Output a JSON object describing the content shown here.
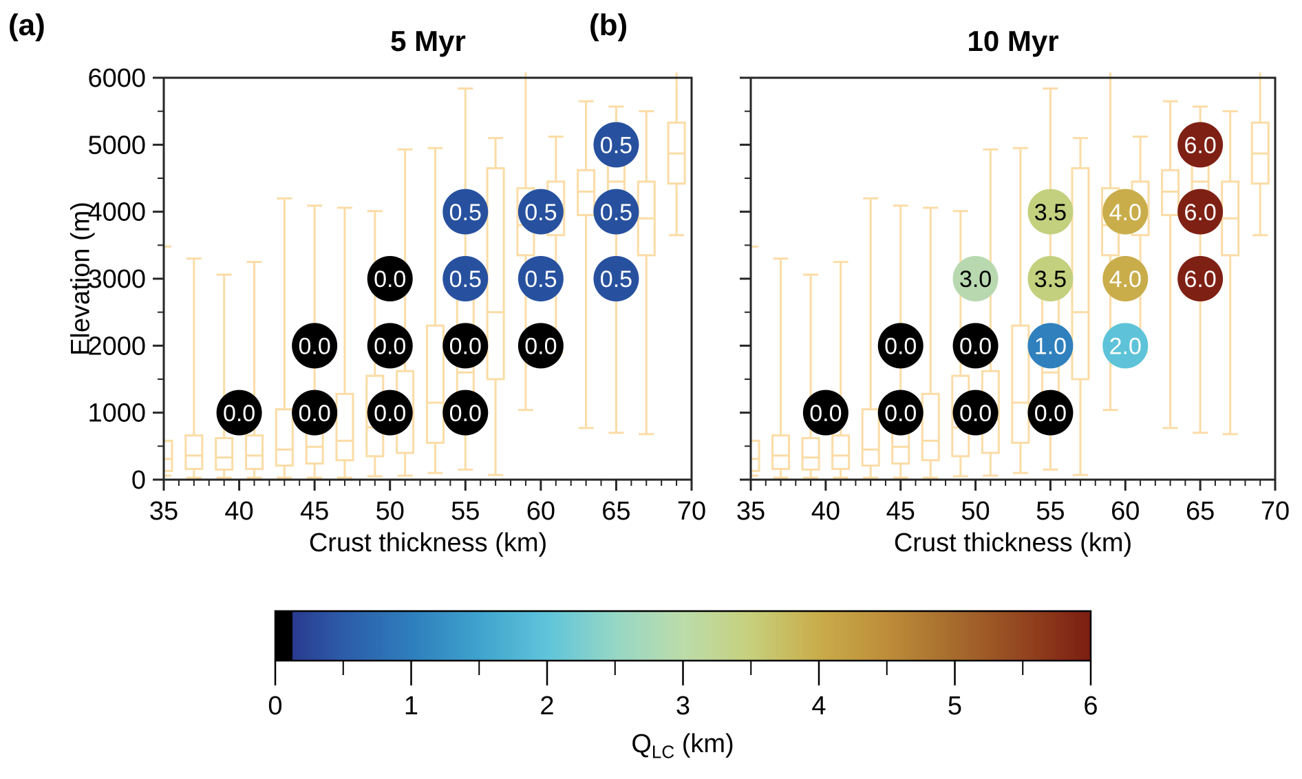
{
  "chart_data": {
    "type": "scatter",
    "description": "Two panels of labeled circular markers over elevation boxplots vs crust thickness, plus shared colorbar",
    "panels": [
      {
        "letter": "(a)",
        "title": "5 Myr",
        "xlabel": "Crust thickness (km)",
        "ylabel": "Elevation (m)",
        "xlim": [
          35,
          70
        ],
        "ylim": [
          0,
          6000
        ],
        "xticks": [
          35,
          40,
          45,
          50,
          55,
          60,
          65,
          70
        ],
        "yticks": [
          0,
          1000,
          2000,
          3000,
          4000,
          5000,
          6000
        ],
        "show_ytick_labels": true,
        "points": [
          {
            "x": 40,
            "y": 1000,
            "value": "0.0"
          },
          {
            "x": 45,
            "y": 1000,
            "value": "0.0"
          },
          {
            "x": 50,
            "y": 1000,
            "value": "0.0"
          },
          {
            "x": 55,
            "y": 1000,
            "value": "0.0"
          },
          {
            "x": 45,
            "y": 2000,
            "value": "0.0"
          },
          {
            "x": 50,
            "y": 2000,
            "value": "0.0"
          },
          {
            "x": 55,
            "y": 2000,
            "value": "0.0"
          },
          {
            "x": 60,
            "y": 2000,
            "value": "0.0"
          },
          {
            "x": 50,
            "y": 3000,
            "value": "0.0"
          },
          {
            "x": 55,
            "y": 3000,
            "value": "0.5"
          },
          {
            "x": 60,
            "y": 3000,
            "value": "0.5"
          },
          {
            "x": 65,
            "y": 3000,
            "value": "0.5"
          },
          {
            "x": 55,
            "y": 4000,
            "value": "0.5"
          },
          {
            "x": 60,
            "y": 4000,
            "value": "0.5"
          },
          {
            "x": 65,
            "y": 4000,
            "value": "0.5"
          },
          {
            "x": 65,
            "y": 5000,
            "value": "0.5"
          }
        ]
      },
      {
        "letter": "(b)",
        "title": "10 Myr",
        "xlabel": "Crust thickness (km)",
        "ylabel": "Elevation (m)",
        "xlim": [
          35,
          70
        ],
        "ylim": [
          0,
          6000
        ],
        "xticks": [
          35,
          40,
          45,
          50,
          55,
          60,
          65,
          70
        ],
        "yticks": [
          0,
          1000,
          2000,
          3000,
          4000,
          5000,
          6000
        ],
        "show_ytick_labels": false,
        "points": [
          {
            "x": 40,
            "y": 1000,
            "value": "0.0"
          },
          {
            "x": 45,
            "y": 1000,
            "value": "0.0"
          },
          {
            "x": 50,
            "y": 1000,
            "value": "0.0"
          },
          {
            "x": 55,
            "y": 1000,
            "value": "0.0"
          },
          {
            "x": 45,
            "y": 2000,
            "value": "0.0"
          },
          {
            "x": 50,
            "y": 2000,
            "value": "0.0"
          },
          {
            "x": 55,
            "y": 2000,
            "value": "1.0"
          },
          {
            "x": 60,
            "y": 2000,
            "value": "2.0"
          },
          {
            "x": 50,
            "y": 3000,
            "value": "3.0"
          },
          {
            "x": 55,
            "y": 3000,
            "value": "3.5"
          },
          {
            "x": 60,
            "y": 3000,
            "value": "4.0"
          },
          {
            "x": 65,
            "y": 3000,
            "value": "6.0"
          },
          {
            "x": 55,
            "y": 4000,
            "value": "3.5"
          },
          {
            "x": 60,
            "y": 4000,
            "value": "4.0"
          },
          {
            "x": 65,
            "y": 4000,
            "value": "6.0"
          },
          {
            "x": 65,
            "y": 5000,
            "value": "6.0"
          }
        ]
      }
    ],
    "value_styles": {
      "0.0": {
        "fill": "#000000",
        "text": "#ffffff"
      },
      "0.5": {
        "fill": "#27519f",
        "text": "#ffffff"
      },
      "1.0": {
        "fill": "#2f80bd",
        "text": "#ffffff"
      },
      "2.0": {
        "fill": "#5ec3d8",
        "text": "#ffffff"
      },
      "3.0": {
        "fill": "#b8d9b0",
        "text": "#000000"
      },
      "3.5": {
        "fill": "#c3d07e",
        "text": "#000000"
      },
      "4.0": {
        "fill": "#c9ad4b",
        "text": "#ffffff"
      },
      "6.0": {
        "fill": "#7f2014",
        "text": "#ffffff"
      }
    },
    "boxplots_shared_by_both_panels": [
      {
        "x": 35,
        "lo": 60,
        "q1": 130,
        "med": 310,
        "q3": 580,
        "hi": 3480
      },
      {
        "x": 37,
        "lo": 30,
        "q1": 160,
        "med": 360,
        "q3": 660,
        "hi": 3300
      },
      {
        "x": 39,
        "lo": 30,
        "q1": 150,
        "med": 330,
        "q3": 620,
        "hi": 3060
      },
      {
        "x": 41,
        "lo": 30,
        "q1": 160,
        "med": 360,
        "q3": 660,
        "hi": 3250
      },
      {
        "x": 43,
        "lo": 30,
        "q1": 210,
        "med": 450,
        "q3": 1050,
        "hi": 4200
      },
      {
        "x": 45,
        "lo": 30,
        "q1": 240,
        "med": 490,
        "q3": 820,
        "hi": 4090
      },
      {
        "x": 47,
        "lo": 30,
        "q1": 290,
        "med": 580,
        "q3": 1280,
        "hi": 4060
      },
      {
        "x": 49,
        "lo": 50,
        "q1": 350,
        "med": 780,
        "q3": 1550,
        "hi": 4010
      },
      {
        "x": 51,
        "lo": 60,
        "q1": 400,
        "med": 900,
        "q3": 1620,
        "hi": 4930
      },
      {
        "x": 53,
        "lo": 100,
        "q1": 550,
        "med": 1150,
        "q3": 2300,
        "hi": 4950
      },
      {
        "x": 55,
        "lo": 150,
        "q1": 850,
        "med": 1600,
        "q3": 3300,
        "hi": 5840
      },
      {
        "x": 57,
        "lo": 70,
        "q1": 1500,
        "med": 2500,
        "q3": 4650,
        "hi": 5100
      },
      {
        "x": 59,
        "lo": 1040,
        "q1": 3350,
        "med": 3800,
        "q3": 4350,
        "hi": 6080
      },
      {
        "x": 61,
        "lo": 1900,
        "q1": 3650,
        "med": 4100,
        "q3": 4450,
        "hi": 5120
      },
      {
        "x": 63,
        "lo": 770,
        "q1": 3950,
        "med": 4300,
        "q3": 4620,
        "hi": 5650
      },
      {
        "x": 65,
        "lo": 700,
        "q1": 3900,
        "med": 4450,
        "q3": 5060,
        "hi": 5570
      },
      {
        "x": 67,
        "lo": 680,
        "q1": 3350,
        "med": 3900,
        "q3": 4450,
        "hi": 5500
      },
      {
        "x": 69,
        "lo": 3650,
        "q1": 4420,
        "med": 4870,
        "q3": 5330,
        "hi": 6080
      }
    ],
    "boxplot_color": "#fbdca6",
    "colorbar": {
      "min": 0,
      "max": 6,
      "major_ticks": [
        0,
        1,
        2,
        3,
        4,
        5,
        6
      ],
      "minor_ticks": [
        0.5,
        1.5,
        2.5,
        3.5,
        4.5,
        5.5
      ],
      "label": {
        "main": "Q",
        "sub": "LC",
        "units": " (km)"
      },
      "gradient_stops": [
        [
          0,
          "#000000"
        ],
        [
          2.1,
          "#000000"
        ],
        [
          2.1,
          "#2a3b8f"
        ],
        [
          8.3,
          "#2c5ca8"
        ],
        [
          16.7,
          "#2e7ebd"
        ],
        [
          25,
          "#3fa3cd"
        ],
        [
          33.3,
          "#5fc4da"
        ],
        [
          41.7,
          "#96d7c5"
        ],
        [
          50,
          "#bcdcaa"
        ],
        [
          58.3,
          "#c6d07c"
        ],
        [
          66.7,
          "#c9ac4a"
        ],
        [
          75,
          "#bd8d3a"
        ],
        [
          83.3,
          "#a66b2d"
        ],
        [
          91.7,
          "#93451f"
        ],
        [
          100,
          "#7c1d12"
        ]
      ]
    },
    "axis_color": "#262626"
  }
}
